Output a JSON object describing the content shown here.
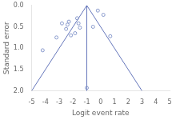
{
  "chart_data": {
    "type": "scatter",
    "xlabel": "Logit event rate",
    "ylabel": "Standard error",
    "xlim": [
      -5,
      5
    ],
    "ylim": [
      2.0,
      0.0
    ],
    "xticks": [
      -5,
      -4,
      -3,
      -2,
      -1,
      0,
      1,
      2,
      3,
      4,
      5
    ],
    "yticks": [
      {
        "value": 0.0,
        "label": "0.0"
      },
      0.5,
      {
        "value": 1.0,
        "label": "1.0"
      },
      1.5,
      {
        "value": 2.0,
        "label": "2.0"
      }
    ],
    "grid": false,
    "series": [
      {
        "type": "line",
        "color": "#6677bb",
        "x": [
          -1.0,
          -5.0
        ],
        "values": [
          0.0,
          2.0
        ]
      },
      {
        "type": "line",
        "color": "#6677bb",
        "x": [
          -1.0,
          3.0
        ],
        "values": [
          0.0,
          2.0
        ]
      },
      {
        "type": "line",
        "color": "#6677bb",
        "x": [
          -1.0,
          -1.0
        ],
        "values": [
          0.0,
          2.0
        ]
      },
      {
        "type": "scatter",
        "color": "#8899cc",
        "marker": "circle",
        "x": [
          -4.2,
          -3.2,
          -2.8,
          -2.5,
          -2.4,
          -2.3,
          -2.15,
          -1.85,
          -1.7,
          -1.6,
          -1.5,
          -0.55,
          -0.2,
          0.2,
          0.7,
          -1.0
        ],
        "values": [
          1.05,
          0.75,
          0.42,
          0.55,
          0.45,
          0.38,
          0.7,
          0.65,
          0.3,
          0.42,
          0.52,
          0.5,
          0.12,
          0.22,
          0.72,
          1.93
        ]
      }
    ]
  }
}
